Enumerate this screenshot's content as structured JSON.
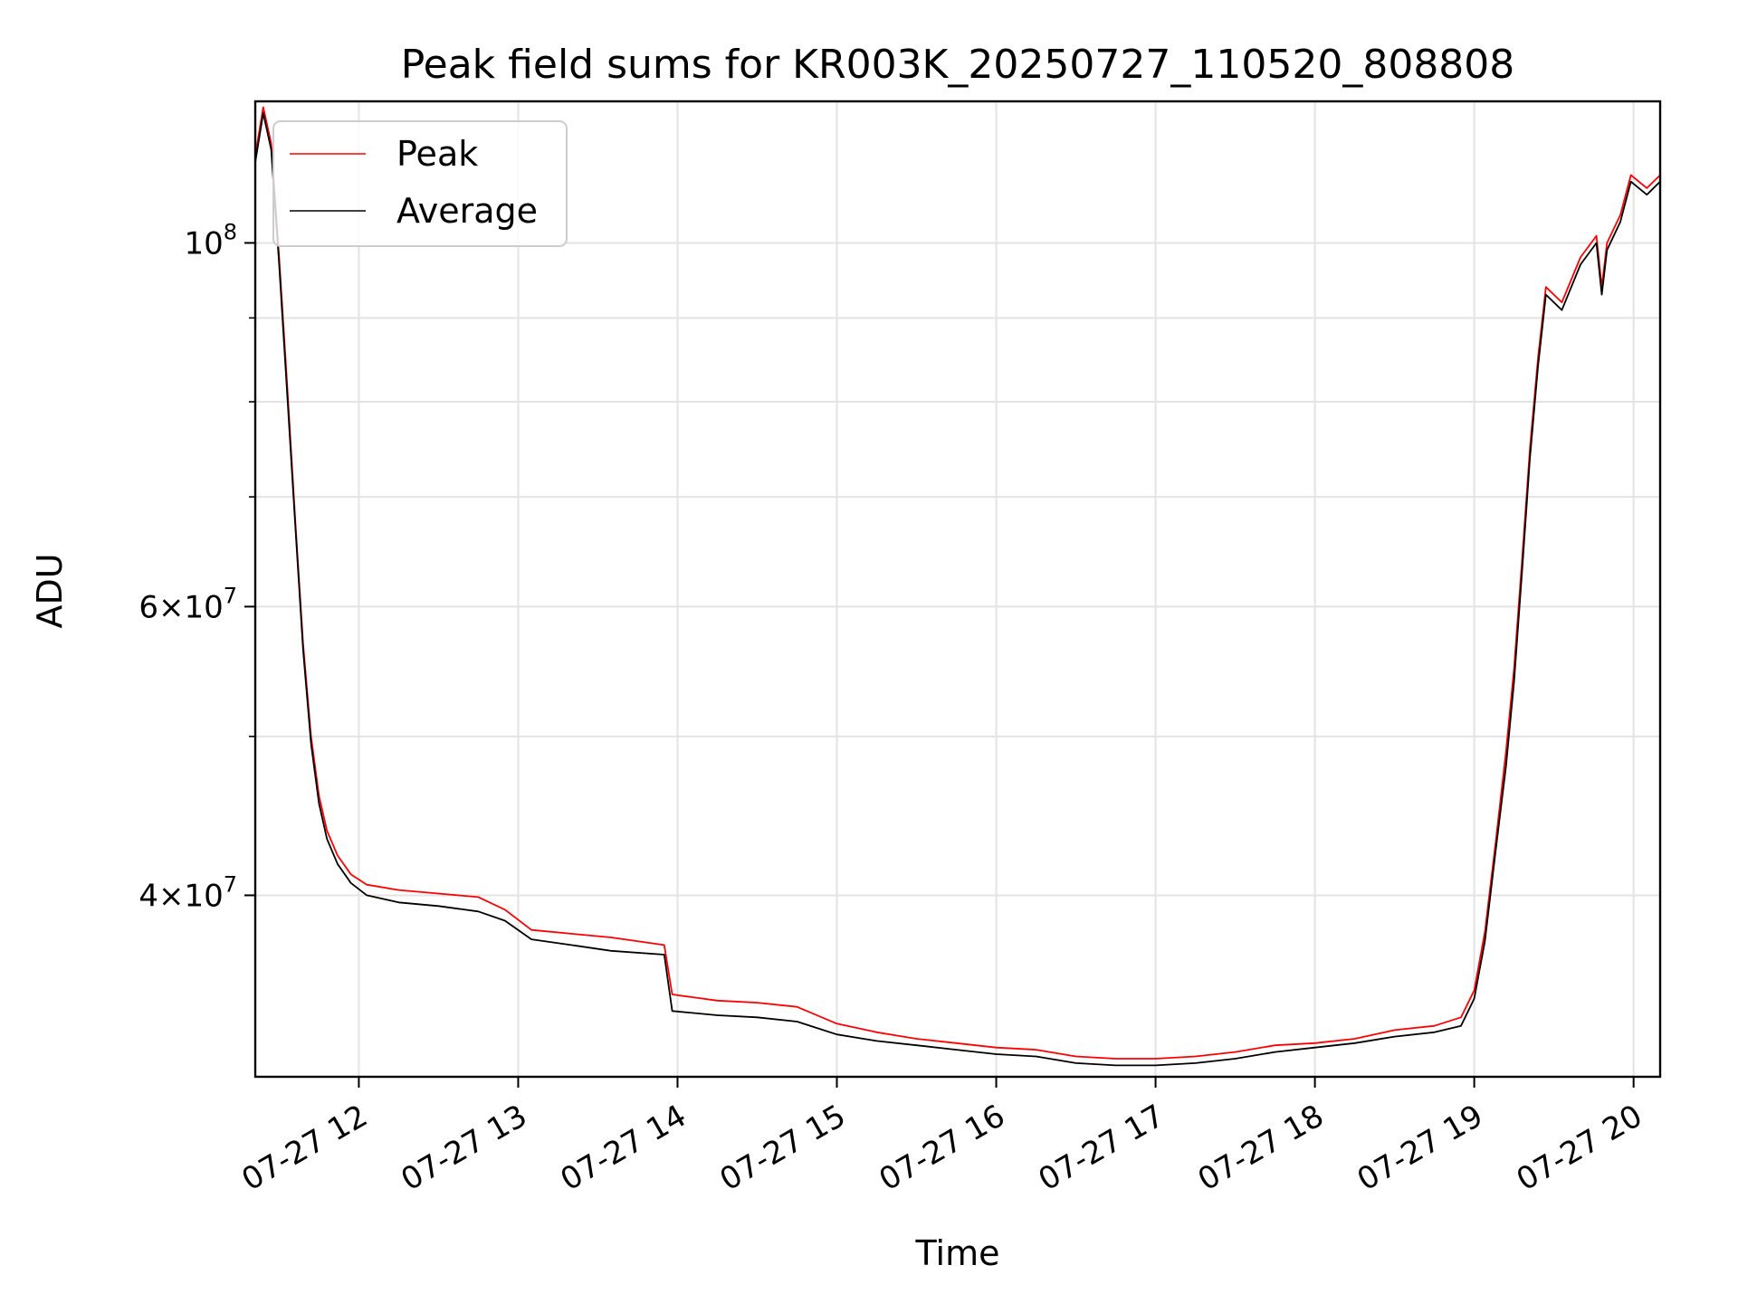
{
  "chart_data": {
    "type": "line",
    "title": "Peak field sums for KR003K_20250727_110520_808808",
    "xlabel": "Time",
    "ylabel": "ADU",
    "yscale": "log",
    "ylim": [
      31000000,
      122000000
    ],
    "xlim": [
      "2025-07-27 11:21",
      "2025-07-27 20:10"
    ],
    "grid": true,
    "legend_position": "upper left",
    "x_ticks": [
      {
        "t": "2025-07-27 12:00",
        "label": "07-27 12"
      },
      {
        "t": "2025-07-27 13:00",
        "label": "07-27 13"
      },
      {
        "t": "2025-07-27 14:00",
        "label": "07-27 14"
      },
      {
        "t": "2025-07-27 15:00",
        "label": "07-27 15"
      },
      {
        "t": "2025-07-27 16:00",
        "label": "07-27 16"
      },
      {
        "t": "2025-07-27 17:00",
        "label": "07-27 17"
      },
      {
        "t": "2025-07-27 18:00",
        "label": "07-27 18"
      },
      {
        "t": "2025-07-27 19:00",
        "label": "07-27 19"
      },
      {
        "t": "2025-07-27 20:00",
        "label": "07-27 20"
      }
    ],
    "y_major_ticks": [
      {
        "v": 40000000,
        "mant": "4",
        "exp": "7"
      },
      {
        "v": 60000000,
        "mant": "6",
        "exp": "7"
      },
      {
        "v": 100000000,
        "mant": "",
        "exp": "8"
      }
    ],
    "y_minor_ticks": [
      50000000,
      70000000,
      80000000,
      90000000
    ],
    "series": [
      {
        "name": "Peak",
        "color": "#ff0000",
        "points": [
          [
            "2025-07-27 11:21",
            113000000
          ],
          [
            "2025-07-27 11:24",
            121000000
          ],
          [
            "2025-07-27 11:27",
            115000000
          ],
          [
            "2025-07-27 11:30",
            98000000
          ],
          [
            "2025-07-27 11:33",
            82000000
          ],
          [
            "2025-07-27 11:36",
            68000000
          ],
          [
            "2025-07-27 11:39",
            57000000
          ],
          [
            "2025-07-27 11:42",
            50000000
          ],
          [
            "2025-07-27 11:45",
            46000000
          ],
          [
            "2025-07-27 11:48",
            43800000
          ],
          [
            "2025-07-27 11:52",
            42300000
          ],
          [
            "2025-07-27 11:57",
            41200000
          ],
          [
            "2025-07-27 12:03",
            40600000
          ],
          [
            "2025-07-27 12:15",
            40300000
          ],
          [
            "2025-07-27 12:30",
            40100000
          ],
          [
            "2025-07-27 12:45",
            39900000
          ],
          [
            "2025-07-27 12:55",
            39200000
          ],
          [
            "2025-07-27 13:05",
            38100000
          ],
          [
            "2025-07-27 13:20",
            37900000
          ],
          [
            "2025-07-27 13:35",
            37700000
          ],
          [
            "2025-07-27 13:55",
            37300000
          ],
          [
            "2025-07-27 13:58",
            34800000
          ],
          [
            "2025-07-27 14:15",
            34500000
          ],
          [
            "2025-07-27 14:30",
            34400000
          ],
          [
            "2025-07-27 14:45",
            34200000
          ],
          [
            "2025-07-27 15:00",
            33400000
          ],
          [
            "2025-07-27 15:15",
            33000000
          ],
          [
            "2025-07-27 15:30",
            32700000
          ],
          [
            "2025-07-27 15:45",
            32500000
          ],
          [
            "2025-07-27 16:00",
            32300000
          ],
          [
            "2025-07-27 16:15",
            32200000
          ],
          [
            "2025-07-27 16:30",
            31900000
          ],
          [
            "2025-07-27 16:45",
            31800000
          ],
          [
            "2025-07-27 17:00",
            31800000
          ],
          [
            "2025-07-27 17:15",
            31900000
          ],
          [
            "2025-07-27 17:30",
            32100000
          ],
          [
            "2025-07-27 17:45",
            32400000
          ],
          [
            "2025-07-27 18:00",
            32500000
          ],
          [
            "2025-07-27 18:15",
            32700000
          ],
          [
            "2025-07-27 18:30",
            33100000
          ],
          [
            "2025-07-27 18:45",
            33300000
          ],
          [
            "2025-07-27 18:55",
            33700000
          ],
          [
            "2025-07-27 19:00",
            35000000
          ],
          [
            "2025-07-27 19:04",
            38000000
          ],
          [
            "2025-07-27 19:08",
            43000000
          ],
          [
            "2025-07-27 19:12",
            49000000
          ],
          [
            "2025-07-27 19:15",
            55000000
          ],
          [
            "2025-07-27 19:18",
            64000000
          ],
          [
            "2025-07-27 19:21",
            75000000
          ],
          [
            "2025-07-27 19:24",
            85000000
          ],
          [
            "2025-07-27 19:27",
            94000000
          ],
          [
            "2025-07-27 19:33",
            92000000
          ],
          [
            "2025-07-27 19:40",
            98000000
          ],
          [
            "2025-07-27 19:46",
            101000000
          ],
          [
            "2025-07-27 19:48",
            94000000
          ],
          [
            "2025-07-27 19:50",
            100000000
          ],
          [
            "2025-07-27 19:55",
            104000000
          ],
          [
            "2025-07-27 19:59",
            110000000
          ],
          [
            "2025-07-27 20:05",
            108000000
          ],
          [
            "2025-07-27 20:10",
            110000000
          ]
        ]
      },
      {
        "name": "Average",
        "color": "#000000",
        "points": [
          [
            "2025-07-27 11:21",
            112000000
          ],
          [
            "2025-07-27 11:24",
            120000000
          ],
          [
            "2025-07-27 11:27",
            114000000
          ],
          [
            "2025-07-27 11:30",
            97000000
          ],
          [
            "2025-07-27 11:33",
            81000000
          ],
          [
            "2025-07-27 11:36",
            67500000
          ],
          [
            "2025-07-27 11:39",
            56500000
          ],
          [
            "2025-07-27 11:42",
            49500000
          ],
          [
            "2025-07-27 11:45",
            45500000
          ],
          [
            "2025-07-27 11:48",
            43300000
          ],
          [
            "2025-07-27 11:52",
            41800000
          ],
          [
            "2025-07-27 11:57",
            40700000
          ],
          [
            "2025-07-27 12:03",
            40000000
          ],
          [
            "2025-07-27 12:15",
            39600000
          ],
          [
            "2025-07-27 12:30",
            39400000
          ],
          [
            "2025-07-27 12:45",
            39100000
          ],
          [
            "2025-07-27 12:55",
            38600000
          ],
          [
            "2025-07-27 13:05",
            37600000
          ],
          [
            "2025-07-27 13:20",
            37300000
          ],
          [
            "2025-07-27 13:35",
            37000000
          ],
          [
            "2025-07-27 13:55",
            36800000
          ],
          [
            "2025-07-27 13:58",
            34000000
          ],
          [
            "2025-07-27 14:15",
            33800000
          ],
          [
            "2025-07-27 14:30",
            33700000
          ],
          [
            "2025-07-27 14:45",
            33500000
          ],
          [
            "2025-07-27 15:00",
            32900000
          ],
          [
            "2025-07-27 15:15",
            32600000
          ],
          [
            "2025-07-27 15:30",
            32400000
          ],
          [
            "2025-07-27 15:45",
            32200000
          ],
          [
            "2025-07-27 16:00",
            32000000
          ],
          [
            "2025-07-27 16:15",
            31900000
          ],
          [
            "2025-07-27 16:30",
            31600000
          ],
          [
            "2025-07-27 16:45",
            31500000
          ],
          [
            "2025-07-27 17:00",
            31500000
          ],
          [
            "2025-07-27 17:15",
            31600000
          ],
          [
            "2025-07-27 17:30",
            31800000
          ],
          [
            "2025-07-27 17:45",
            32100000
          ],
          [
            "2025-07-27 18:00",
            32300000
          ],
          [
            "2025-07-27 18:15",
            32500000
          ],
          [
            "2025-07-27 18:30",
            32800000
          ],
          [
            "2025-07-27 18:45",
            33000000
          ],
          [
            "2025-07-27 18:55",
            33300000
          ],
          [
            "2025-07-27 19:00",
            34600000
          ],
          [
            "2025-07-27 19:04",
            37500000
          ],
          [
            "2025-07-27 19:08",
            42500000
          ],
          [
            "2025-07-27 19:12",
            48000000
          ],
          [
            "2025-07-27 19:15",
            54000000
          ],
          [
            "2025-07-27 19:18",
            63000000
          ],
          [
            "2025-07-27 19:21",
            74000000
          ],
          [
            "2025-07-27 19:24",
            84000000
          ],
          [
            "2025-07-27 19:27",
            93000000
          ],
          [
            "2025-07-27 19:33",
            91000000
          ],
          [
            "2025-07-27 19:40",
            97000000
          ],
          [
            "2025-07-27 19:46",
            100000000
          ],
          [
            "2025-07-27 19:48",
            93000000
          ],
          [
            "2025-07-27 19:50",
            99000000
          ],
          [
            "2025-07-27 19:55",
            103000000
          ],
          [
            "2025-07-27 19:59",
            109000000
          ],
          [
            "2025-07-27 20:05",
            107000000
          ],
          [
            "2025-07-27 20:10",
            109000000
          ]
        ]
      }
    ]
  }
}
